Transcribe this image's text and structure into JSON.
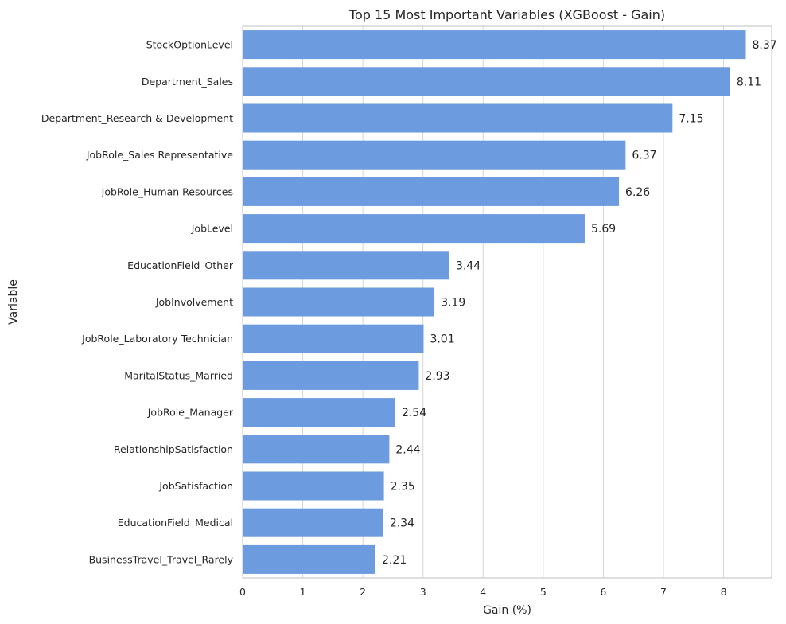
{
  "chart_data": {
    "type": "bar",
    "orientation": "horizontal",
    "title": "Top 15 Most Important Variables (XGBoost - Gain)",
    "xlabel": "Gain (%)",
    "ylabel": "Variable",
    "xlim": [
      0,
      8.8
    ],
    "xticks": [
      0,
      1,
      2,
      3,
      4,
      5,
      6,
      7,
      8
    ],
    "grid": true,
    "bar_color": "#6d9be0",
    "categories": [
      "StockOptionLevel",
      "Department_Sales",
      "Department_Research & Development",
      "JobRole_Sales Representative",
      "JobRole_Human Resources",
      "JobLevel",
      "EducationField_Other",
      "JobInvolvement",
      "JobRole_Laboratory Technician",
      "MaritalStatus_Married",
      "JobRole_Manager",
      "RelationshipSatisfaction",
      "JobSatisfaction",
      "EducationField_Medical",
      "BusinessTravel_Travel_Rarely"
    ],
    "values": [
      8.37,
      8.11,
      7.15,
      6.37,
      6.26,
      5.69,
      3.44,
      3.19,
      3.01,
      2.93,
      2.54,
      2.44,
      2.35,
      2.34,
      2.21
    ],
    "value_labels": [
      "8.37",
      "8.11",
      "7.15",
      "6.37",
      "6.26",
      "5.69",
      "3.44",
      "3.19",
      "3.01",
      "2.93",
      "2.54",
      "2.44",
      "2.35",
      "2.34",
      "2.21"
    ]
  }
}
